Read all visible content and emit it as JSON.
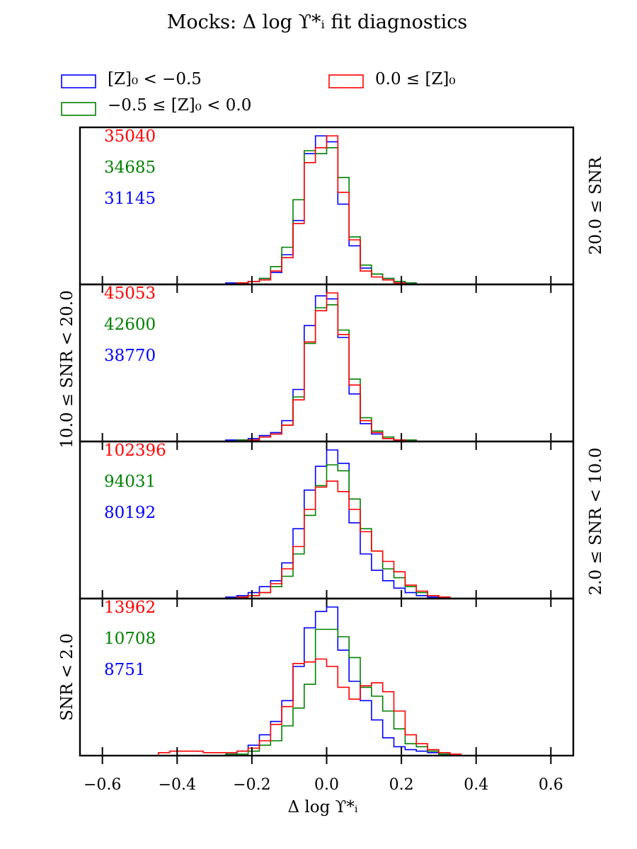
{
  "chart_data": {
    "type": "histogram",
    "title": "Mocks: Δ log ϒ*ᵢ fit diagnostics",
    "xlabel": "Δ log ϒ*ᵢ",
    "xlim": [
      -0.66,
      0.66
    ],
    "xticks": [
      -0.6,
      -0.4,
      -0.2,
      0.0,
      0.2,
      0.4,
      0.6
    ],
    "xtick_labels": [
      "−0.6",
      "−0.4",
      "−0.2",
      "0.0",
      "0.2",
      "0.4",
      "0.6"
    ],
    "bin_edges": [
      -0.45,
      -0.42,
      -0.39,
      -0.36,
      -0.33,
      -0.3,
      -0.27,
      -0.24,
      -0.21,
      -0.18,
      -0.15,
      -0.12,
      -0.09,
      -0.06,
      -0.03,
      0.0,
      0.03,
      0.06,
      0.09,
      0.12,
      0.15,
      0.18,
      0.21,
      0.24,
      0.27,
      0.3,
      0.33,
      0.36,
      0.39,
      0.42
    ],
    "legend": [
      {
        "label": "[Z]₀ < −0.5",
        "color": "#0000ff"
      },
      {
        "label": "−0.5 ≤ [Z]₀ < 0.0",
        "color": "#008000"
      },
      {
        "label": "0.0 ≤ [Z]₀",
        "color": "#ff0000"
      }
    ],
    "panels": [
      {
        "right_label": "20.0 ≤ SNR",
        "counts": {
          "red": "35040",
          "green": "34685",
          "blue": "31145"
        },
        "series": [
          {
            "name": "[Z]₀ < −0.5",
            "color": "#0000ff",
            "values": [
              0,
              0,
              0,
              0,
              0,
              0,
              0.01,
              0.01,
              0.02,
              0.04,
              0.08,
              0.2,
              0.43,
              0.88,
              1.0,
              0.96,
              0.54,
              0.26,
              0.11,
              0.07,
              0.04,
              0.02,
              0.01,
              0,
              0,
              0,
              0,
              0,
              0
            ]
          },
          {
            "name": "−0.5 ≤ [Z]₀ < 0.0",
            "color": "#008000",
            "values": [
              0,
              0,
              0,
              0,
              0,
              0,
              0,
              0.01,
              0.02,
              0.04,
              0.12,
              0.25,
              0.57,
              0.9,
              0.88,
              0.92,
              0.72,
              0.32,
              0.13,
              0.07,
              0.04,
              0.02,
              0.01,
              0,
              0,
              0,
              0,
              0,
              0
            ]
          },
          {
            "name": "0.0 ≤ [Z]₀",
            "color": "#ff0000",
            "values": [
              0,
              0,
              0,
              0,
              0,
              0,
              0,
              0.01,
              0.02,
              0.03,
              0.09,
              0.18,
              0.41,
              0.82,
              0.92,
              1.0,
              0.62,
              0.3,
              0.09,
              0.05,
              0.03,
              0.01,
              0,
              0,
              0,
              0,
              0,
              0,
              0
            ]
          }
        ]
      },
      {
        "left_label": "10.0 ≤ SNR < 20.0",
        "counts": {
          "red": "45053",
          "green": "42600",
          "blue": "38770"
        },
        "series": [
          {
            "name": "[Z]₀ < −0.5",
            "color": "#0000ff",
            "values": [
              0,
              0,
              0,
              0,
              0,
              0,
              0.01,
              0.01,
              0.02,
              0.04,
              0.06,
              0.14,
              0.35,
              0.78,
              0.98,
              0.96,
              0.7,
              0.32,
              0.12,
              0.05,
              0.02,
              0.01,
              0,
              0,
              0,
              0,
              0,
              0,
              0
            ]
          },
          {
            "name": "−0.5 ≤ [Z]₀ < 0.0",
            "color": "#008000",
            "values": [
              0,
              0,
              0,
              0,
              0,
              0,
              0,
              0.01,
              0.01,
              0.03,
              0.05,
              0.11,
              0.3,
              0.66,
              0.9,
              0.92,
              0.75,
              0.42,
              0.16,
              0.07,
              0.03,
              0.01,
              0.01,
              0,
              0,
              0,
              0,
              0,
              0
            ]
          },
          {
            "name": "0.0 ≤ [Z]₀",
            "color": "#ff0000",
            "values": [
              0,
              0,
              0,
              0,
              0,
              0,
              0,
              0,
              0.01,
              0.03,
              0.05,
              0.11,
              0.28,
              0.67,
              0.88,
              1.0,
              0.72,
              0.38,
              0.14,
              0.06,
              0.02,
              0.01,
              0,
              0,
              0,
              0,
              0,
              0,
              0
            ]
          }
        ]
      },
      {
        "right_label": "2.0 ≤ SNR < 10.0",
        "counts": {
          "red": "102396",
          "green": "94031",
          "blue": "80192"
        },
        "series": [
          {
            "name": "[Z]₀ < −0.5",
            "color": "#0000ff",
            "values": [
              0,
              0,
              0,
              0,
              0,
              0,
              0.01,
              0.02,
              0.04,
              0.08,
              0.12,
              0.24,
              0.47,
              0.73,
              0.89,
              1.0,
              0.91,
              0.51,
              0.3,
              0.19,
              0.12,
              0.07,
              0.04,
              0.02,
              0.01,
              0,
              0,
              0,
              0
            ]
          },
          {
            "name": "−0.5 ≤ [Z]₀ < 0.0",
            "color": "#008000",
            "values": [
              0,
              0,
              0,
              0,
              0,
              0,
              0,
              0.01,
              0.02,
              0.04,
              0.08,
              0.15,
              0.3,
              0.56,
              0.76,
              0.9,
              0.86,
              0.67,
              0.47,
              0.32,
              0.2,
              0.14,
              0.08,
              0.04,
              0.02,
              0.01,
              0,
              0,
              0
            ]
          },
          {
            "name": "0.0 ≤ [Z]₀",
            "color": "#ff0000",
            "values": [
              0,
              0,
              0,
              0,
              0,
              0,
              0,
              0.01,
              0.02,
              0.04,
              0.1,
              0.2,
              0.35,
              0.6,
              0.75,
              0.79,
              0.72,
              0.6,
              0.45,
              0.32,
              0.25,
              0.18,
              0.09,
              0.05,
              0.02,
              0.01,
              0,
              0,
              0
            ]
          }
        ]
      },
      {
        "left_label": "SNR < 2.0",
        "counts": {
          "red": "13962",
          "green": "10708",
          "blue": "8751"
        },
        "series": [
          {
            "name": "[Z]₀ < −0.5",
            "color": "#0000ff",
            "values": [
              0,
              0,
              0,
              0,
              0,
              0,
              0.01,
              0.03,
              0.07,
              0.14,
              0.23,
              0.37,
              0.6,
              0.86,
              0.97,
              1.0,
              0.71,
              0.5,
              0.37,
              0.24,
              0.12,
              0.06,
              0.04,
              0.03,
              0.02,
              0.01,
              0,
              0,
              0
            ]
          },
          {
            "name": "−0.5 ≤ [Z]₀ < 0.0",
            "color": "#008000",
            "values": [
              0,
              0,
              0,
              0,
              0,
              0,
              0.01,
              0.01,
              0.03,
              0.07,
              0.1,
              0.2,
              0.32,
              0.48,
              0.85,
              0.85,
              0.8,
              0.66,
              0.46,
              0.4,
              0.3,
              0.18,
              0.08,
              0.06,
              0.03,
              0.01,
              0,
              0,
              0
            ]
          },
          {
            "name": "0.0 ≤ [Z]₀",
            "color": "#ff0000",
            "values": [
              0.02,
              0.03,
              0.03,
              0.03,
              0.02,
              0.02,
              0.02,
              0.03,
              0.05,
              0.1,
              0.21,
              0.33,
              0.62,
              0.63,
              0.65,
              0.6,
              0.46,
              0.38,
              0.47,
              0.49,
              0.43,
              0.3,
              0.14,
              0.08,
              0.04,
              0.02,
              0.01,
              0,
              0
            ]
          }
        ]
      }
    ]
  }
}
